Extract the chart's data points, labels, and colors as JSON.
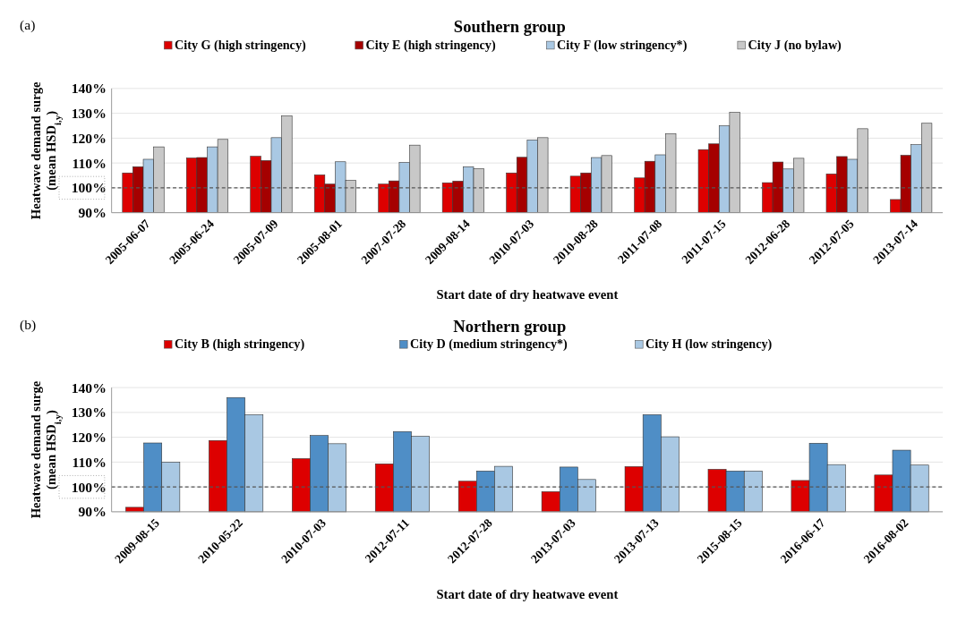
{
  "chart_data": [
    {
      "type": "bar",
      "title": "Southern group",
      "xlabel": "Start date of dry heatwave event",
      "ylabel": "Heatwave demand surge\n(mean HSD$_{i,y}$)",
      "annotations": [
        "(a)"
      ],
      "categories": [
        "2005-06-07",
        "2005-06-24",
        "2005-07-09",
        "2005-08-01",
        "2007-07-28",
        "2009-08-14",
        "2010-07-03",
        "2010-08-28",
        "2011-07-08",
        "2011-07-15",
        "2012-06-28",
        "2012-07-05",
        "2013-07-14"
      ],
      "series": [
        {
          "name": "City G (high stringency)",
          "color": "#dd0000",
          "values": [
            106,
            112,
            112.7,
            105.2,
            101.5,
            102,
            106,
            104.7,
            104,
            115.4,
            102.1,
            105.6,
            95.3
          ]
        },
        {
          "name": "City E (high stringency)",
          "color": "#a50000",
          "values": [
            108.5,
            112.2,
            111,
            101.5,
            102.8,
            102.7,
            112.3,
            106,
            110.7,
            117.7,
            110.4,
            112.6,
            113.1
          ]
        },
        {
          "name": "City F (low stringency*)",
          "color": "#a9c8e3",
          "values": [
            111.5,
            116.5,
            120.2,
            110.5,
            110.2,
            108.5,
            119.3,
            112.2,
            113.3,
            125,
            107.6,
            111.5,
            117.4
          ]
        },
        {
          "name": "City J (no bylaw)",
          "color": "#c8c8c8",
          "values": [
            116.5,
            119.5,
            129,
            103,
            117.2,
            107.7,
            120.2,
            113,
            121.8,
            130.4,
            111.9,
            123.8,
            126
          ]
        }
      ],
      "ylim": [
        90,
        140
      ],
      "yticks": [
        {
          "value": 90,
          "label": "90%"
        },
        {
          "value": 100,
          "label": "100%"
        },
        {
          "value": 110,
          "label": "110%"
        },
        {
          "value": 120,
          "label": "120%"
        },
        {
          "value": 130,
          "label": "130%"
        },
        {
          "value": 140,
          "label": "140%"
        }
      ],
      "grid": "y",
      "legend": "top",
      "ref_lines": [
        {
          "axis": "y",
          "value": 100,
          "line_style": "dashed",
          "color": "#555555"
        }
      ]
    },
    {
      "type": "bar",
      "title": "Northern group",
      "xlabel": "Start date of dry heatwave event",
      "ylabel": "Heatwave demand surge\n(mean HSD$_{i,y}$)",
      "annotations": [
        "(b)"
      ],
      "categories": [
        "2009-08-15",
        "2010-05-22",
        "2010-07-03",
        "2012-07-11",
        "2012-07-28",
        "2013-07-03",
        "2013-07-13",
        "2015-08-15",
        "2016-06-17",
        "2016-08-02"
      ],
      "series": [
        {
          "name": "City B (high stringency)",
          "color": "#dd0000",
          "values": [
            91.8,
            118.7,
            111.4,
            109.3,
            102.3,
            98.1,
            108.2,
            107.1,
            102.6,
            104.8
          ]
        },
        {
          "name": "City D (medium stringency*)",
          "color": "#4f8ec6",
          "values": [
            117.7,
            136,
            120.7,
            122.3,
            106.4,
            108,
            129.1,
            106.4,
            117.6,
            114.8
          ]
        },
        {
          "name": "City H (low stringency)",
          "color": "#a9c8e3",
          "values": [
            110,
            129.1,
            117.4,
            120.4,
            108.3,
            103,
            120.2,
            106.4,
            109,
            108.8
          ]
        }
      ],
      "ylim": [
        90,
        140
      ],
      "yticks": [
        {
          "value": 90,
          "label": "90%"
        },
        {
          "value": 100,
          "label": "100%"
        },
        {
          "value": 110,
          "label": "110%"
        },
        {
          "value": 120,
          "label": "120%"
        },
        {
          "value": 130,
          "label": "130%"
        },
        {
          "value": 140,
          "label": "140%"
        }
      ],
      "grid": "y",
      "legend": "top",
      "ref_lines": [
        {
          "axis": "y",
          "value": 100,
          "line_style": "dashed",
          "color": "#555555"
        }
      ]
    }
  ]
}
